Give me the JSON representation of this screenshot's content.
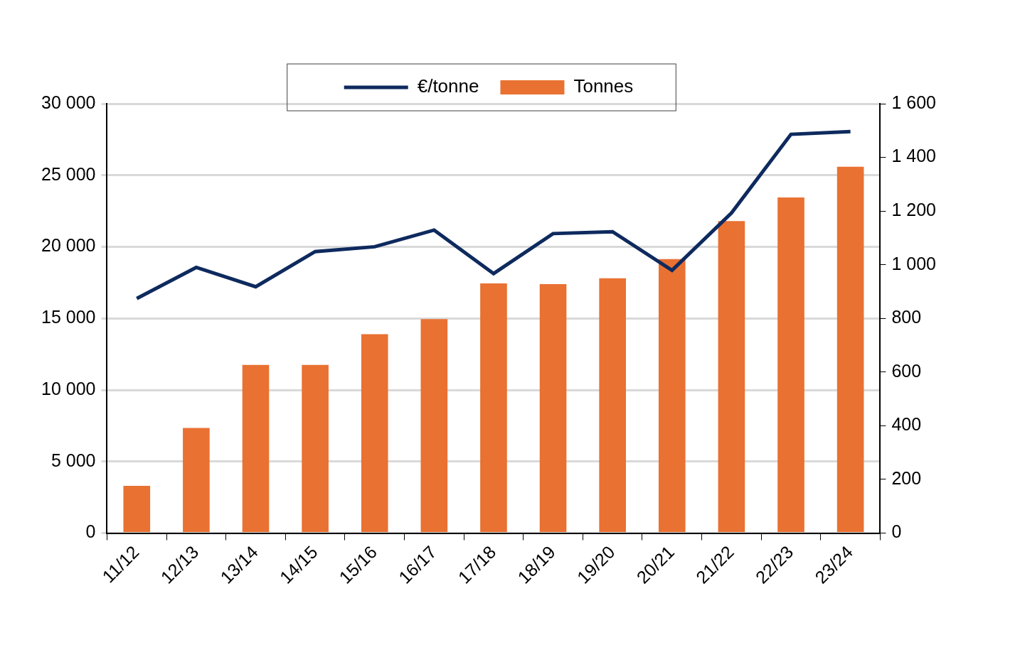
{
  "chart_data": {
    "type": "bar",
    "categories": [
      "11/12",
      "12/13",
      "13/14",
      "14/15",
      "15/16",
      "16/17",
      "17/18",
      "18/19",
      "19/20",
      "20/21",
      "21/22",
      "22/23",
      "23/24"
    ],
    "series": [
      {
        "name": "Tonnes",
        "type": "bar",
        "color": "#E97132",
        "values": [
          3300,
          7350,
          11750,
          11750,
          13900,
          14950,
          17450,
          17400,
          17800,
          19150,
          21800,
          23450,
          25600
        ]
      },
      {
        "name": "€/tonne",
        "type": "line",
        "axis": "y2",
        "color": "#0E2A5E",
        "marker": "none",
        "line_style": "solid",
        "values": [
          874,
          990,
          918,
          1049,
          1067,
          1129,
          967,
          1116,
          1123,
          979,
          1193,
          1486,
          1496
        ]
      }
    ],
    "ylim": [
      0,
      30000
    ],
    "yticks": [
      0,
      {
        "value": 5000,
        "label": "5 000"
      },
      {
        "value": 10000,
        "label": "10 000"
      },
      {
        "value": 15000,
        "label": "15 000"
      },
      {
        "value": 20000,
        "label": "20 000"
      },
      {
        "value": 25000,
        "label": "25 000"
      },
      {
        "value": 30000,
        "label": "30 000"
      }
    ],
    "y2lim": [
      0,
      1600
    ],
    "y2ticks": [
      0,
      200,
      400,
      600,
      800,
      {
        "value": 1000,
        "label": "1 000"
      },
      {
        "value": 1200,
        "label": "1 200"
      },
      {
        "value": 1400,
        "label": "1 400"
      },
      {
        "value": 1600,
        "label": "1 600"
      }
    ],
    "grid": true,
    "legend": "top"
  }
}
